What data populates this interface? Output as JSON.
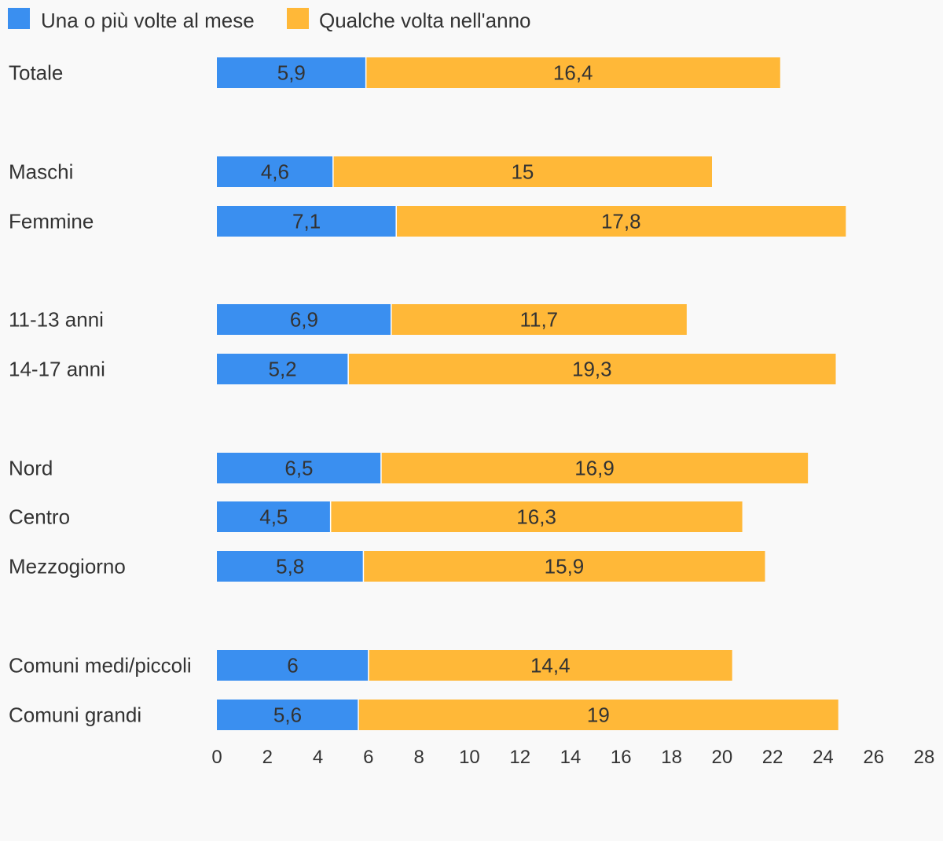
{
  "chart_data": {
    "type": "bar",
    "orientation": "horizontal",
    "stacked": true,
    "categories": [
      "Totale",
      "Maschi",
      "Femmine",
      "11-13 anni",
      "14-17 anni",
      "Nord",
      "Centro",
      "Mezzogiorno",
      "Comuni medi/piccoli",
      "Comuni grandi"
    ],
    "series": [
      {
        "name": "Una o più volte al mese",
        "color": "#3a8ff0",
        "values": [
          5.9,
          4.6,
          7.1,
          6.9,
          5.2,
          6.5,
          4.5,
          5.8,
          6,
          5.6
        ],
        "labels": [
          "5,9",
          "4,6",
          "7,1",
          "6,9",
          "5,2",
          "6,5",
          "4,5",
          "5,8",
          "6",
          "5,6"
        ]
      },
      {
        "name": "Qualche volta nell'anno",
        "color": "#ffb838",
        "values": [
          16.4,
          15,
          17.8,
          11.7,
          19.3,
          16.9,
          16.3,
          15.9,
          14.4,
          19
        ],
        "labels": [
          "16,4",
          "15",
          "17,8",
          "11,7",
          "19,3",
          "16,9",
          "16,3",
          "15,9",
          "14,4",
          "19"
        ]
      }
    ],
    "xlim": [
      0,
      28
    ],
    "xticks": [
      "0",
      "2",
      "4",
      "6",
      "8",
      "10",
      "12",
      "14",
      "16",
      "18",
      "20",
      "22",
      "24",
      "26",
      "28"
    ],
    "grid": false,
    "legend": "top-left",
    "title": "",
    "xlabel": "",
    "ylabel": ""
  }
}
